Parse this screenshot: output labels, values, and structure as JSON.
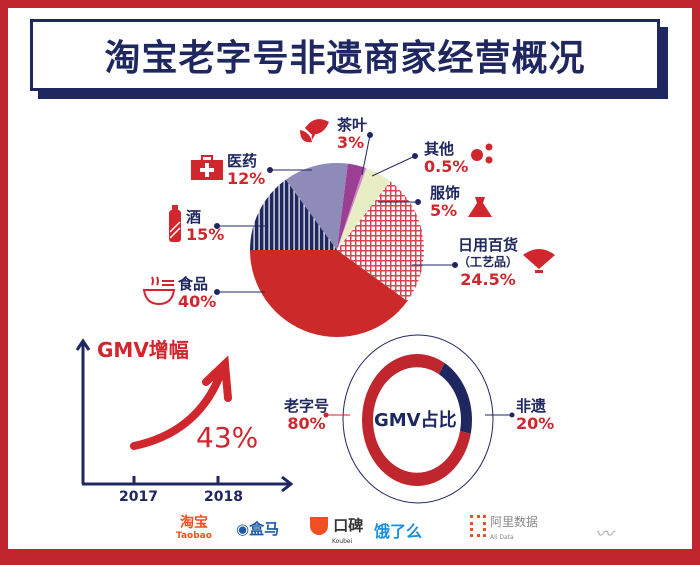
{
  "title": "淘宝老字号非遗商家经营概况",
  "chart_data": [
    {
      "type": "pie",
      "title": "",
      "categories": [
        "酒",
        "医药",
        "茶叶",
        "其他",
        "服饰",
        "日用百货（工艺品）",
        "食品"
      ],
      "values": [
        15,
        12,
        3,
        0.5,
        5,
        24.5,
        40
      ],
      "labels": [
        {
          "name": "酒",
          "pct": "15%"
        },
        {
          "name": "医药",
          "pct": "12%"
        },
        {
          "name": "茶叶",
          "pct": "3%"
        },
        {
          "name": "其他",
          "pct": "0.5%"
        },
        {
          "name": "服饰",
          "pct": "5%"
        },
        {
          "name": "日用百货",
          "sub": "（工艺品）",
          "pct": "24.5%"
        },
        {
          "name": "食品",
          "pct": "40%"
        }
      ],
      "colors": [
        "#1f2760",
        "#8f8bb8",
        "#9b3f94",
        "#d08ac6",
        "#e9edc4",
        "#d94450",
        "#cc2a2a"
      ],
      "icons": [
        "liquor-bottle-icon",
        "medical-kit-icon",
        "tea-leaf-icon",
        "dots-icon",
        "dress-icon",
        "fan-icon",
        "noodle-bowl-icon"
      ]
    },
    {
      "type": "line",
      "title": "GMV增幅",
      "x": [
        "2017",
        "2018"
      ],
      "annotation": "43%",
      "growth_percent": 43
    },
    {
      "type": "pie",
      "title": "GMV占比",
      "categories": [
        "老字号",
        "非遗"
      ],
      "values": [
        80,
        20
      ],
      "pcts": [
        "80%",
        "20%"
      ],
      "colors": [
        "#c0262d",
        "#1f2760"
      ]
    }
  ],
  "logos": {
    "taobao": "淘宝",
    "taobao_en": "Taobao",
    "hema": "盒马",
    "koubei": "口碑",
    "koubei_en": "Koubei",
    "eleme": "饿了么",
    "alidata": "阿里数据",
    "alidata_en": "Ali Data"
  }
}
